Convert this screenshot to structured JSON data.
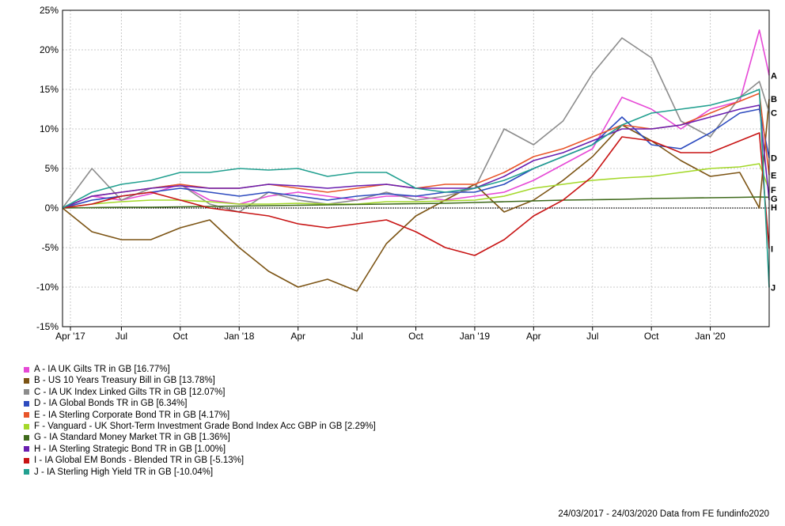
{
  "footer": "24/03/2017 - 24/03/2020 Data from FE fundinfo2020",
  "chart_data": {
    "type": "line",
    "title": "",
    "xlabel": "",
    "ylabel": "",
    "ylim": [
      -15,
      25
    ],
    "yticks": [
      -15,
      -10,
      -5,
      0,
      5,
      10,
      15,
      20,
      25
    ],
    "ytick_labels": [
      "-15%",
      "-10%",
      "-5%",
      "0%",
      "5%",
      "10%",
      "15%",
      "20%",
      "25%"
    ],
    "xlim": [
      0,
      36
    ],
    "xticks": [
      0,
      3,
      6,
      9,
      12,
      15,
      18,
      21,
      24,
      27,
      30,
      33
    ],
    "xtick_labels": [
      "Apr '17",
      "Jul",
      "Oct",
      "Jan '18",
      "Apr",
      "Jul",
      "Oct",
      "Jan '19",
      "Apr",
      "Jul",
      "Oct",
      "Jan '20"
    ],
    "grid": true,
    "legend_position": "bottom",
    "x": [
      0,
      1.5,
      3,
      4.5,
      6,
      7.5,
      9,
      10.5,
      12,
      13.5,
      15,
      16.5,
      18,
      19.5,
      21,
      22.5,
      24,
      25.5,
      27,
      28.5,
      30,
      31.5,
      33,
      34.5,
      35.5,
      36
    ],
    "series": [
      {
        "label": "A",
        "name": "A - IA UK Gilts TR in GB [16.77%]",
        "color": "#e649d6",
        "values": [
          0,
          1.5,
          1.0,
          1.8,
          3.0,
          1.0,
          0.5,
          1.5,
          2.0,
          1.5,
          1.0,
          1.5,
          1.5,
          1.0,
          1.5,
          2.0,
          3.5,
          5.5,
          7.5,
          14.0,
          12.5,
          10.0,
          12.5,
          13.5,
          22.5,
          16.77
        ]
      },
      {
        "label": "B",
        "name": "B - US 10 Years Treasury Bill in GB [13.78%]",
        "color": "#7c5414",
        "values": [
          0,
          -3.0,
          -4.0,
          -4.0,
          -2.5,
          -1.5,
          -5.0,
          -8.0,
          -10.0,
          -9.0,
          -10.5,
          -4.5,
          -1.0,
          1.0,
          3.0,
          -0.5,
          1.0,
          3.5,
          6.5,
          10.5,
          8.5,
          6.0,
          4.0,
          4.5,
          0.0,
          13.78
        ]
      },
      {
        "label": "C",
        "name": "C - IA UK Index Linked Gilts TR in GB [12.07%]",
        "color": "#8c8c8c",
        "values": [
          0,
          5.0,
          1.0,
          2.5,
          3.0,
          0.5,
          -0.5,
          2.0,
          1.0,
          0.5,
          1.0,
          2.0,
          1.0,
          1.5,
          2.5,
          10.0,
          8.0,
          11.0,
          17.0,
          21.5,
          19.0,
          11.0,
          9.0,
          14.0,
          16.0,
          12.07
        ]
      },
      {
        "label": "D",
        "name": "D - IA Global Bonds TR in GB [6.34%]",
        "color": "#2d4bbf",
        "values": [
          0,
          1.0,
          1.5,
          2.0,
          2.5,
          2.0,
          1.5,
          2.0,
          1.5,
          1.0,
          1.5,
          1.8,
          1.5,
          2.0,
          2.0,
          3.0,
          5.0,
          6.5,
          8.0,
          11.5,
          8.0,
          7.5,
          9.5,
          12.0,
          12.5,
          6.34
        ]
      },
      {
        "label": "E",
        "name": "E - IA Sterling Corporate Bond TR in GB [4.17%]",
        "color": "#e8552a",
        "values": [
          0,
          1.5,
          2.0,
          2.5,
          3.0,
          2.5,
          2.5,
          3.0,
          2.5,
          2.0,
          2.5,
          3.0,
          2.5,
          3.0,
          3.0,
          4.5,
          6.5,
          7.5,
          9.0,
          10.5,
          10.0,
          10.5,
          12.0,
          13.5,
          14.5,
          4.17
        ]
      },
      {
        "label": "F",
        "name": "F - Vanguard - UK Short-Term Investment Grade Bond Index Acc GBP in GB [2.29%]",
        "color": "#a4d82a",
        "values": [
          0,
          0.5,
          0.8,
          1.0,
          1.0,
          0.8,
          0.5,
          0.5,
          0.6,
          0.5,
          0.5,
          0.8,
          0.8,
          0.9,
          1.0,
          1.5,
          2.5,
          3.0,
          3.5,
          3.8,
          4.0,
          4.5,
          5.0,
          5.2,
          5.6,
          2.29
        ]
      },
      {
        "label": "G",
        "name": "G - IA Standard Money Market TR in GB [1.36%]",
        "color": "#3f6a1c",
        "values": [
          0,
          0.05,
          0.1,
          0.1,
          0.15,
          0.2,
          0.25,
          0.3,
          0.35,
          0.4,
          0.45,
          0.5,
          0.55,
          0.6,
          0.7,
          0.8,
          0.9,
          1.0,
          1.05,
          1.1,
          1.2,
          1.25,
          1.3,
          1.35,
          1.4,
          1.36
        ]
      },
      {
        "label": "H",
        "name": "H - IA Sterling Strategic Bond TR in GB [1.00%]",
        "color": "#6a1fb0",
        "values": [
          0,
          1.5,
          2.0,
          2.5,
          2.8,
          2.5,
          2.5,
          3.0,
          2.8,
          2.5,
          2.8,
          3.0,
          2.5,
          2.5,
          2.5,
          4.0,
          6.0,
          7.0,
          8.5,
          10.0,
          10.0,
          10.5,
          11.5,
          12.5,
          13.0,
          1.0
        ]
      },
      {
        "label": "I",
        "name": "I - IA Global EM Bonds - Blended TR in GB [-5.13%]",
        "color": "#c81414",
        "values": [
          0,
          0.5,
          1.5,
          2.0,
          1.0,
          0.0,
          -0.5,
          -1.0,
          -2.0,
          -2.5,
          -2.0,
          -1.5,
          -3.0,
          -5.0,
          -6.0,
          -4.0,
          -1.0,
          1.0,
          4.0,
          9.0,
          8.5,
          7.0,
          7.0,
          8.5,
          9.5,
          -5.13
        ]
      },
      {
        "label": "J",
        "name": "J - IA Sterling High Yield TR in GB [-10.04%]",
        "color": "#22a090",
        "values": [
          0,
          2.0,
          3.0,
          3.5,
          4.5,
          4.5,
          5.0,
          4.8,
          5.0,
          4.0,
          4.5,
          4.5,
          2.5,
          2.0,
          2.5,
          3.5,
          5.0,
          6.5,
          8.0,
          10.5,
          12.0,
          12.5,
          13.0,
          14.0,
          15.0,
          -10.04
        ]
      }
    ]
  }
}
